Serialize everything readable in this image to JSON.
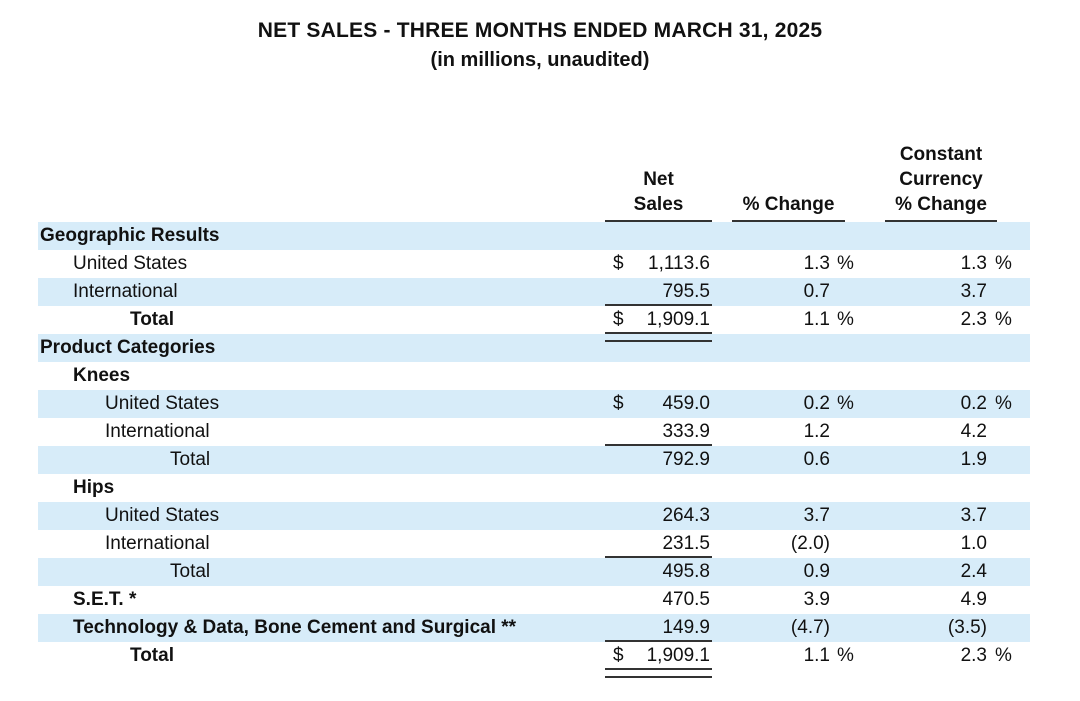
{
  "page": {
    "title": "NET SALES - THREE MONTHS ENDED MARCH 31, 2025",
    "subtitle": "(in millions, unaudited)"
  },
  "colors": {
    "stripe": "#D7ECF9",
    "rule": "#333333",
    "text": "#111111"
  },
  "table": {
    "header": {
      "net_sales": [
        "Net",
        "Sales"
      ],
      "pct_change": "% Change",
      "constant_currency": [
        "Constant",
        "Currency",
        "% Change"
      ]
    },
    "rows": [
      {
        "label": "Geographic Results",
        "indent": "ind0",
        "bold": true,
        "stripe": true,
        "dollar": "",
        "net_sales": "",
        "rule": "none",
        "pct_change": "",
        "pct_suffix": "",
        "cc_change": "",
        "cc_suffix": ""
      },
      {
        "label": "United States",
        "indent": "ind1",
        "bold": false,
        "stripe": false,
        "dollar": "$",
        "net_sales": "1,113.6",
        "rule": "none",
        "pct_change": "1.3",
        "pct_suffix": "%",
        "cc_change": "1.3",
        "cc_suffix": "%"
      },
      {
        "label": "International",
        "indent": "ind1",
        "bold": false,
        "stripe": true,
        "dollar": "",
        "net_sales": "795.5",
        "rule": "single",
        "pct_change": "0.7",
        "pct_suffix": "",
        "cc_change": "3.7",
        "cc_suffix": ""
      },
      {
        "label": "Total",
        "indent": "ind3",
        "bold": true,
        "stripe": false,
        "dollar": "$",
        "net_sales": "1,909.1",
        "rule": "double",
        "pct_change": "1.1",
        "pct_suffix": "%",
        "cc_change": "2.3",
        "cc_suffix": "%"
      },
      {
        "label": "Product Categories",
        "indent": "ind0",
        "bold": true,
        "stripe": true,
        "dollar": "",
        "net_sales": "",
        "rule": "none",
        "pct_change": "",
        "pct_suffix": "",
        "cc_change": "",
        "cc_suffix": ""
      },
      {
        "label": "Knees",
        "indent": "ind1",
        "bold": true,
        "stripe": false,
        "dollar": "",
        "net_sales": "",
        "rule": "none",
        "pct_change": "",
        "pct_suffix": "",
        "cc_change": "",
        "cc_suffix": ""
      },
      {
        "label": "United States",
        "indent": "ind2",
        "bold": false,
        "stripe": true,
        "dollar": "$",
        "net_sales": "459.0",
        "rule": "none",
        "pct_change": "0.2",
        "pct_suffix": "%",
        "cc_change": "0.2",
        "cc_suffix": "%"
      },
      {
        "label": "International",
        "indent": "ind2",
        "bold": false,
        "stripe": false,
        "dollar": "",
        "net_sales": "333.9",
        "rule": "single",
        "pct_change": "1.2",
        "pct_suffix": "",
        "cc_change": "4.2",
        "cc_suffix": ""
      },
      {
        "label": "Total",
        "indent": "ind4",
        "bold": false,
        "stripe": true,
        "dollar": "",
        "net_sales": "792.9",
        "rule": "none",
        "pct_change": "0.6",
        "pct_suffix": "",
        "cc_change": "1.9",
        "cc_suffix": ""
      },
      {
        "label": "Hips",
        "indent": "ind1",
        "bold": true,
        "stripe": false,
        "dollar": "",
        "net_sales": "",
        "rule": "none",
        "pct_change": "",
        "pct_suffix": "",
        "cc_change": "",
        "cc_suffix": ""
      },
      {
        "label": "United States",
        "indent": "ind2",
        "bold": false,
        "stripe": true,
        "dollar": "",
        "net_sales": "264.3",
        "rule": "none",
        "pct_change": "3.7",
        "pct_suffix": "",
        "cc_change": "3.7",
        "cc_suffix": ""
      },
      {
        "label": "International",
        "indent": "ind2",
        "bold": false,
        "stripe": false,
        "dollar": "",
        "net_sales": "231.5",
        "rule": "single",
        "pct_change": "(2.0)",
        "pct_suffix": "",
        "cc_change": "1.0",
        "cc_suffix": ""
      },
      {
        "label": "Total",
        "indent": "ind4",
        "bold": false,
        "stripe": true,
        "dollar": "",
        "net_sales": "495.8",
        "rule": "none",
        "pct_change": "0.9",
        "pct_suffix": "",
        "cc_change": "2.4",
        "cc_suffix": ""
      },
      {
        "label": "S.E.T. *",
        "indent": "ind1",
        "bold": true,
        "stripe": false,
        "dollar": "",
        "net_sales": "470.5",
        "rule": "none",
        "pct_change": "3.9",
        "pct_suffix": "",
        "cc_change": "4.9",
        "cc_suffix": ""
      },
      {
        "label": "Technology & Data, Bone Cement and Surgical **",
        "indent": "ind1",
        "bold": true,
        "stripe": true,
        "dollar": "",
        "net_sales": "149.9",
        "rule": "single",
        "pct_change": "(4.7)",
        "pct_suffix": "",
        "cc_change": "(3.5)",
        "cc_suffix": ""
      },
      {
        "label": "Total",
        "indent": "ind3",
        "bold": true,
        "stripe": false,
        "dollar": "$",
        "net_sales": "1,909.1",
        "rule": "double",
        "pct_change": "1.1",
        "pct_suffix": "%",
        "cc_change": "2.3",
        "cc_suffix": "%"
      }
    ]
  }
}
